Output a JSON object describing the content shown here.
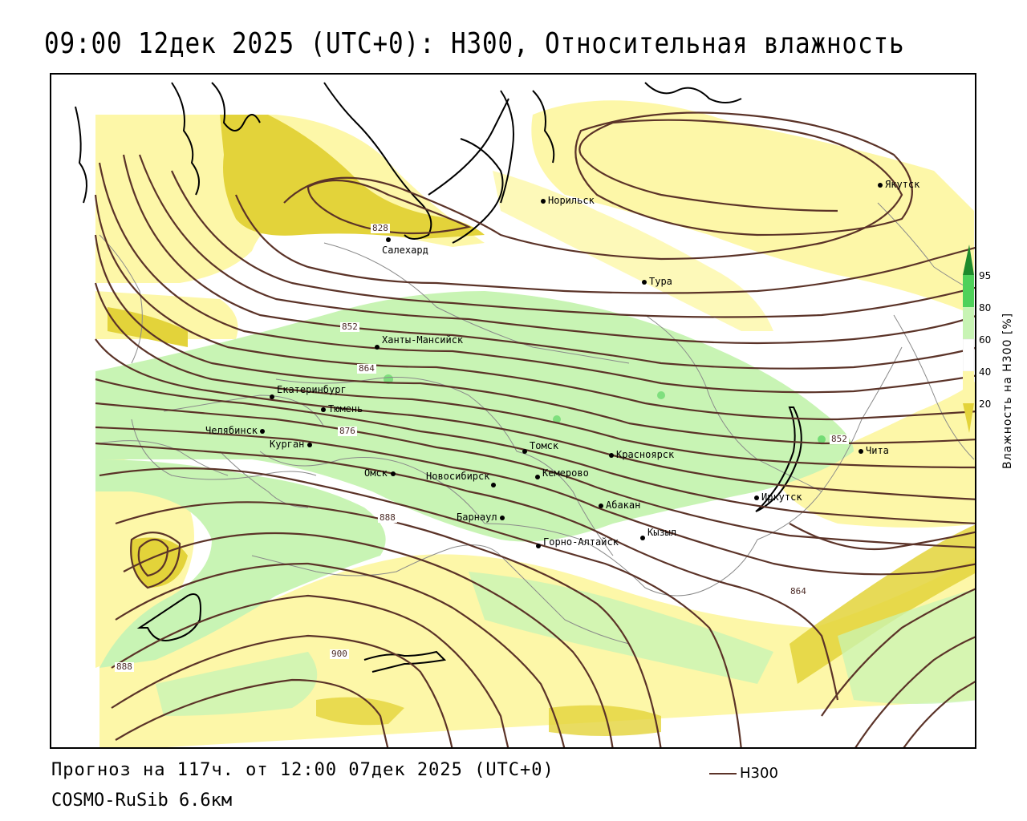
{
  "header": {
    "title": "09:00 12дек 2025 (UTC+0): H300, Относительная влажность"
  },
  "map": {
    "cities": [
      {
        "name": "Якутск",
        "id": "yakutsk"
      },
      {
        "name": "Норильск",
        "id": "norilsk"
      },
      {
        "name": "Салехард",
        "id": "salekhard"
      },
      {
        "name": "Тура",
        "id": "tura"
      },
      {
        "name": "Ханты-Мансийск",
        "id": "khanty"
      },
      {
        "name": "Екатеринбург",
        "id": "ekb"
      },
      {
        "name": "Тюмень",
        "id": "tyumen"
      },
      {
        "name": "Челябинск",
        "id": "chelyabinsk"
      },
      {
        "name": "Курган",
        "id": "kurgan"
      },
      {
        "name": "Омск",
        "id": "omsk"
      },
      {
        "name": "Томск",
        "id": "tomsk"
      },
      {
        "name": "Новосибирск",
        "id": "novosibirsk"
      },
      {
        "name": "Кемерово",
        "id": "kemerovo"
      },
      {
        "name": "Красноярск",
        "id": "krasnoyarsk"
      },
      {
        "name": "Абакан",
        "id": "abakan"
      },
      {
        "name": "Барнаул",
        "id": "barnaul"
      },
      {
        "name": "Горно-Алтайск",
        "id": "gorno"
      },
      {
        "name": "Кызыл",
        "id": "kyzyl"
      },
      {
        "name": "Иркутск",
        "id": "irkutsk"
      },
      {
        "name": "Чита",
        "id": "chita"
      }
    ],
    "contour_labels": [
      "828",
      "852",
      "864",
      "876",
      "888",
      "900",
      "888",
      "864",
      "852"
    ],
    "colors": {
      "contour": "#5b3328",
      "rh_20_40": "#fdf7a8",
      "rh_lt20": "#e3d33a",
      "rh_60_80": "#c8f4b4",
      "rh_80_95": "#4fd15a",
      "rh_gt95": "#1e8a2c",
      "border": "#000000",
      "region": "#7f7f7f"
    }
  },
  "colorbar": {
    "ticks": [
      "95",
      "80",
      "60",
      "40",
      "20"
    ],
    "title": "Влажность на H300 [%]"
  },
  "footer": {
    "forecast": "Прогноз на 117ч. от 12:00 07дек 2025 (UTC+0)",
    "model": "COSMO-RuSib 6.6км",
    "legend_label": "H300"
  }
}
